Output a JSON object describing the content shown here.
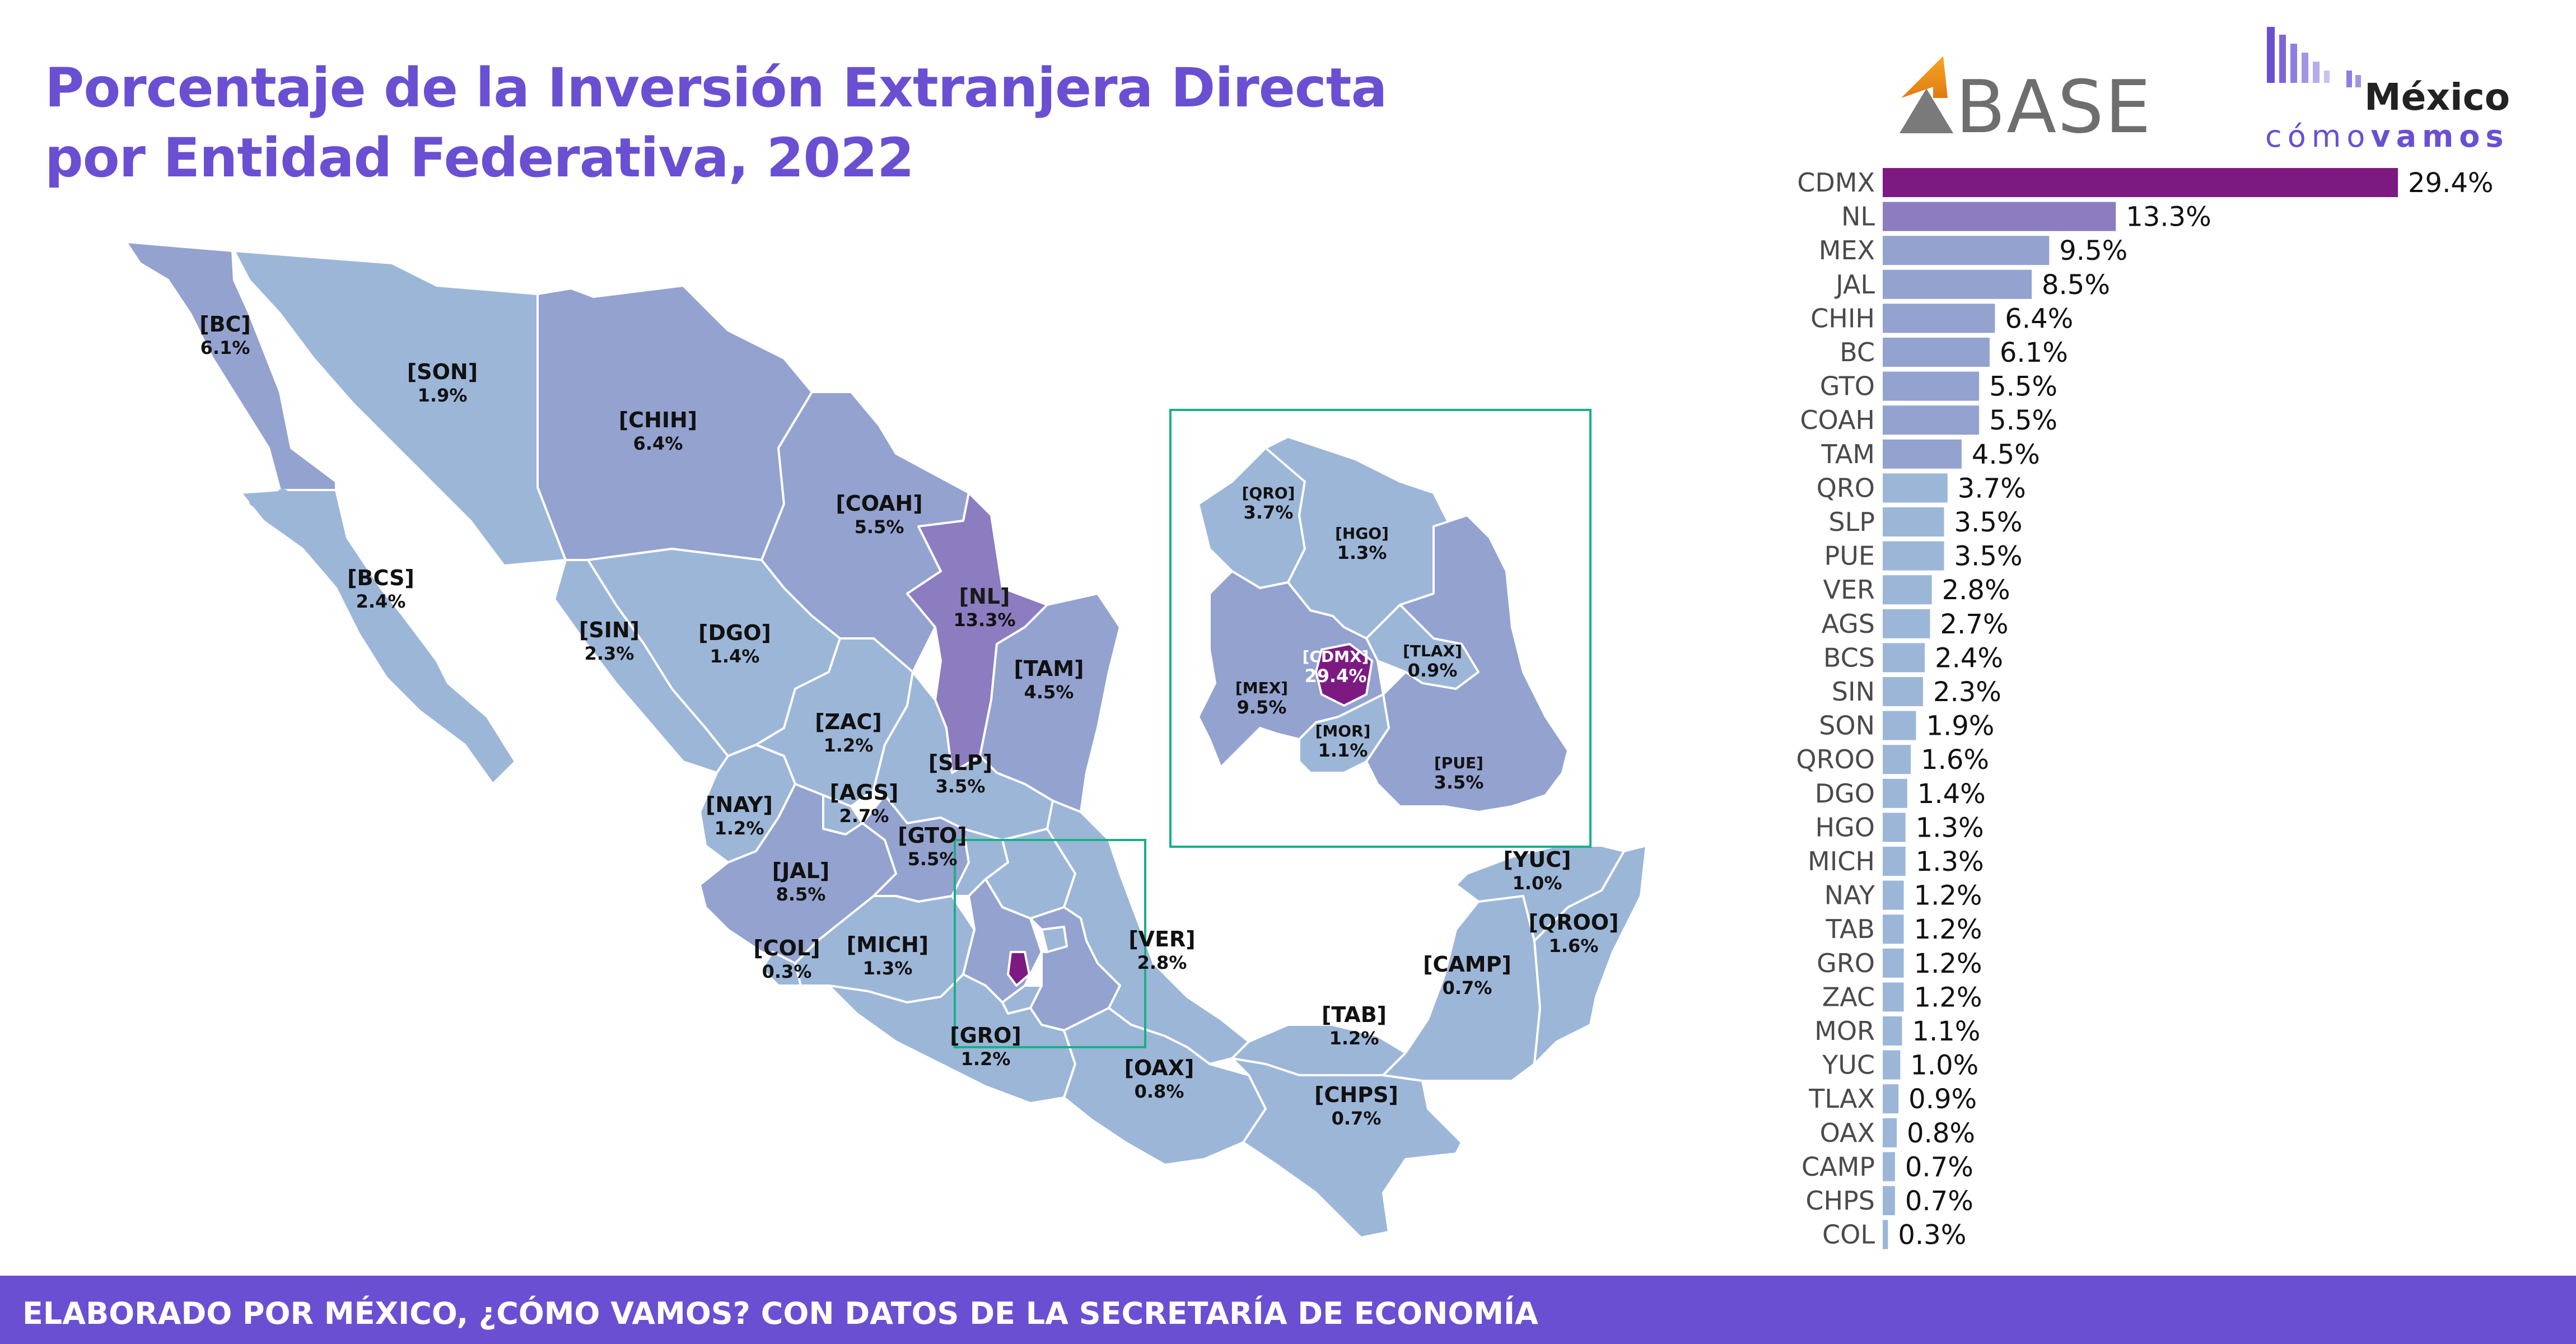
{
  "title_lines": [
    "Porcentaje de la Inversión Extranjera Directa",
    "por Entidad Federativa, 2022"
  ],
  "footer": "ELABORADO POR MÉXICO, ¿CÓMO VAMOS? CON DATOS DE LA SECRETARÍA DE ECONOMÍA",
  "logos": {
    "base": "BASE",
    "mcv_top": "México",
    "mcv_bottom_light": "cómo",
    "mcv_bottom_bold": "vamos"
  },
  "colors": {
    "title": "#6a4fd2",
    "footer_bg": "#6a4fd2",
    "highest": "#7d1a82",
    "second": "#8c7cc0",
    "mid": "#93a2cf",
    "low": "#9cb6d8",
    "inset_border": "#1aae8a"
  },
  "chart_data": [
    {
      "type": "bar",
      "orientation": "horizontal",
      "categories": [
        "CDMX",
        "NL",
        "MEX",
        "JAL",
        "CHIH",
        "BC",
        "GTO",
        "COAH",
        "TAM",
        "QRO",
        "SLP",
        "PUE",
        "VER",
        "AGS",
        "BCS",
        "SIN",
        "SON",
        "QROO",
        "DGO",
        "HGO",
        "MICH",
        "NAY",
        "TAB",
        "GRO",
        "ZAC",
        "MOR",
        "YUC",
        "TLAX",
        "OAX",
        "CAMP",
        "CHPS",
        "COL"
      ],
      "values": [
        29.4,
        13.3,
        9.5,
        8.5,
        6.4,
        6.1,
        5.5,
        5.5,
        4.5,
        3.7,
        3.5,
        3.5,
        2.8,
        2.7,
        2.4,
        2.3,
        1.9,
        1.6,
        1.4,
        1.3,
        1.3,
        1.2,
        1.2,
        1.2,
        1.2,
        1.1,
        1.0,
        0.9,
        0.8,
        0.7,
        0.7,
        0.3
      ],
      "value_labels": [
        "29.4%",
        "13.3%",
        "9.5%",
        "8.5%",
        "6.4%",
        "6.1%",
        "5.5%",
        "5.5%",
        "4.5%",
        "3.7%",
        "3.5%",
        "3.5%",
        "2.8%",
        "2.7%",
        "2.4%",
        "2.3%",
        "1.9%",
        "1.6%",
        "1.4%",
        "1.3%",
        "1.3%",
        "1.2%",
        "1.2%",
        "1.2%",
        "1.2%",
        "1.1%",
        "1.0%",
        "0.9%",
        "0.8%",
        "0.7%",
        "0.7%",
        "0.3%"
      ],
      "unit": "%",
      "xlim": [
        0,
        29.4
      ]
    },
    {
      "type": "choropleth",
      "regions": [
        {
          "code": "[BC]",
          "value": "6.1%"
        },
        {
          "code": "[SON]",
          "value": "1.9%"
        },
        {
          "code": "[CHIH]",
          "value": "6.4%"
        },
        {
          "code": "[COAH]",
          "value": "5.5%"
        },
        {
          "code": "[NL]",
          "value": "13.3%"
        },
        {
          "code": "[TAM]",
          "value": "4.5%"
        },
        {
          "code": "[BCS]",
          "value": "2.4%"
        },
        {
          "code": "[SIN]",
          "value": "2.3%"
        },
        {
          "code": "[DGO]",
          "value": "1.4%"
        },
        {
          "code": "[ZAC]",
          "value": "1.2%"
        },
        {
          "code": "[SLP]",
          "value": "3.5%"
        },
        {
          "code": "[NAY]",
          "value": "1.2%"
        },
        {
          "code": "[AGS]",
          "value": "2.7%"
        },
        {
          "code": "[GTO]",
          "value": "5.5%"
        },
        {
          "code": "[JAL]",
          "value": "8.5%"
        },
        {
          "code": "[COL]",
          "value": "0.3%"
        },
        {
          "code": "[MICH]",
          "value": "1.3%"
        },
        {
          "code": "[VER]",
          "value": "2.8%"
        },
        {
          "code": "[GRO]",
          "value": "1.2%"
        },
        {
          "code": "[OAX]",
          "value": "0.8%"
        },
        {
          "code": "[TAB]",
          "value": "1.2%"
        },
        {
          "code": "[CHPS]",
          "value": "0.7%"
        },
        {
          "code": "[CAMP]",
          "value": "0.7%"
        },
        {
          "code": "[YUC]",
          "value": "1.0%"
        },
        {
          "code": "[QROO]",
          "value": "1.6%"
        }
      ],
      "inset_regions": [
        {
          "code": "[QRO]",
          "value": "3.7%"
        },
        {
          "code": "[HGO]",
          "value": "1.3%"
        },
        {
          "code": "[CDMX]",
          "value": "29.4%"
        },
        {
          "code": "[TLAX]",
          "value": "0.9%"
        },
        {
          "code": "[MEX]",
          "value": "9.5%"
        },
        {
          "code": "[MOR]",
          "value": "1.1%"
        },
        {
          "code": "[PUE]",
          "value": "3.5%"
        }
      ]
    }
  ]
}
